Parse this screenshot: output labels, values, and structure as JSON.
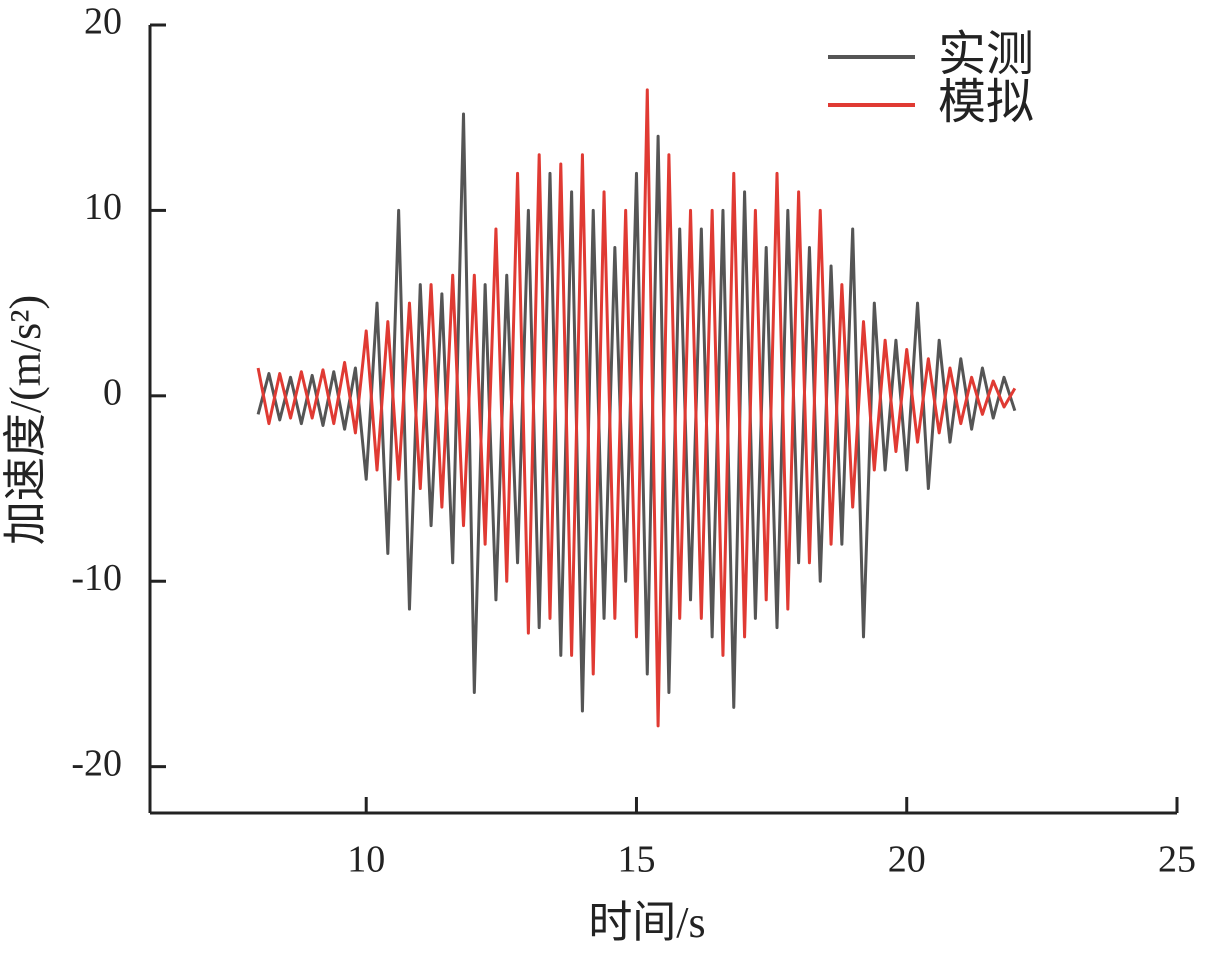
{
  "chart_data": {
    "type": "line",
    "xlabel": "时间/s",
    "ylabel": "加速度/(m/s²)",
    "x": [
      8.0,
      8.2,
      8.4,
      8.6,
      8.8,
      9.0,
      9.2,
      9.4,
      9.6,
      9.8,
      10.0,
      10.2,
      10.4,
      10.6,
      10.8,
      11.0,
      11.2,
      11.4,
      11.6,
      11.8,
      12.0,
      12.2,
      12.4,
      12.6,
      12.8,
      13.0,
      13.2,
      13.4,
      13.6,
      13.8,
      14.0,
      14.2,
      14.4,
      14.6,
      14.8,
      15.0,
      15.2,
      15.4,
      15.6,
      15.8,
      16.0,
      16.2,
      16.4,
      16.6,
      16.8,
      17.0,
      17.2,
      17.4,
      17.6,
      17.8,
      18.0,
      18.2,
      18.4,
      18.6,
      18.8,
      19.0,
      19.2,
      19.4,
      19.6,
      19.8,
      20.0,
      20.2,
      20.4,
      20.6,
      20.8,
      21.0,
      21.2,
      21.4,
      21.6,
      21.8,
      22.0
    ],
    "series": [
      {
        "name": "实测",
        "color": "#555555",
        "values": [
          -1,
          1.2,
          -1.3,
          1.0,
          -1.5,
          1.1,
          -1.6,
          1.3,
          -1.8,
          1.5,
          -4.5,
          5,
          -8.5,
          10,
          -11.5,
          6,
          -7,
          5.5,
          -9,
          15.2,
          -16,
          6,
          -11,
          6.5,
          -9,
          10,
          -12.5,
          12,
          -14,
          11,
          -17,
          10,
          -12,
          8,
          -10,
          12,
          -15,
          14,
          -16,
          9,
          -11,
          9,
          -13,
          10,
          -16.8,
          11,
          -12,
          8,
          -12.5,
          10,
          -9,
          8,
          -10,
          7,
          -8,
          9,
          -13,
          5,
          -4,
          3,
          -4,
          5,
          -5,
          3,
          -2.5,
          2,
          -1.8,
          1.5,
          -1.2,
          1,
          -0.8
        ]
      },
      {
        "name": "模拟",
        "color": "#e03a33",
        "values": [
          1.5,
          -1.5,
          1.2,
          -1.2,
          1.3,
          -1.2,
          1.4,
          -1.5,
          1.8,
          -2,
          3.5,
          -4,
          4,
          -4.5,
          5,
          -5,
          6,
          -6,
          6.5,
          -7,
          6.5,
          -8,
          9,
          -10,
          12,
          -12.8,
          13,
          -12,
          12.5,
          -14,
          13,
          -15,
          11,
          -12,
          10,
          -13,
          16.5,
          -17.8,
          13,
          -12,
          10,
          -12,
          10,
          -14,
          12,
          -13,
          10,
          -11,
          12,
          -11.5,
          11,
          -9,
          10,
          -8,
          6,
          -6,
          4,
          -4,
          3,
          -3,
          2.5,
          -2.5,
          2,
          -2,
          1.5,
          -1.5,
          1,
          -1,
          0.8,
          -0.6,
          0.4
        ]
      }
    ],
    "xlim": [
      6,
      25
    ],
    "xticks": [
      10,
      15,
      20,
      25
    ],
    "ylim": [
      -22.5,
      20
    ],
    "yticks": [
      -20,
      -10,
      0,
      10,
      20
    ],
    "legend": "upper-right"
  }
}
